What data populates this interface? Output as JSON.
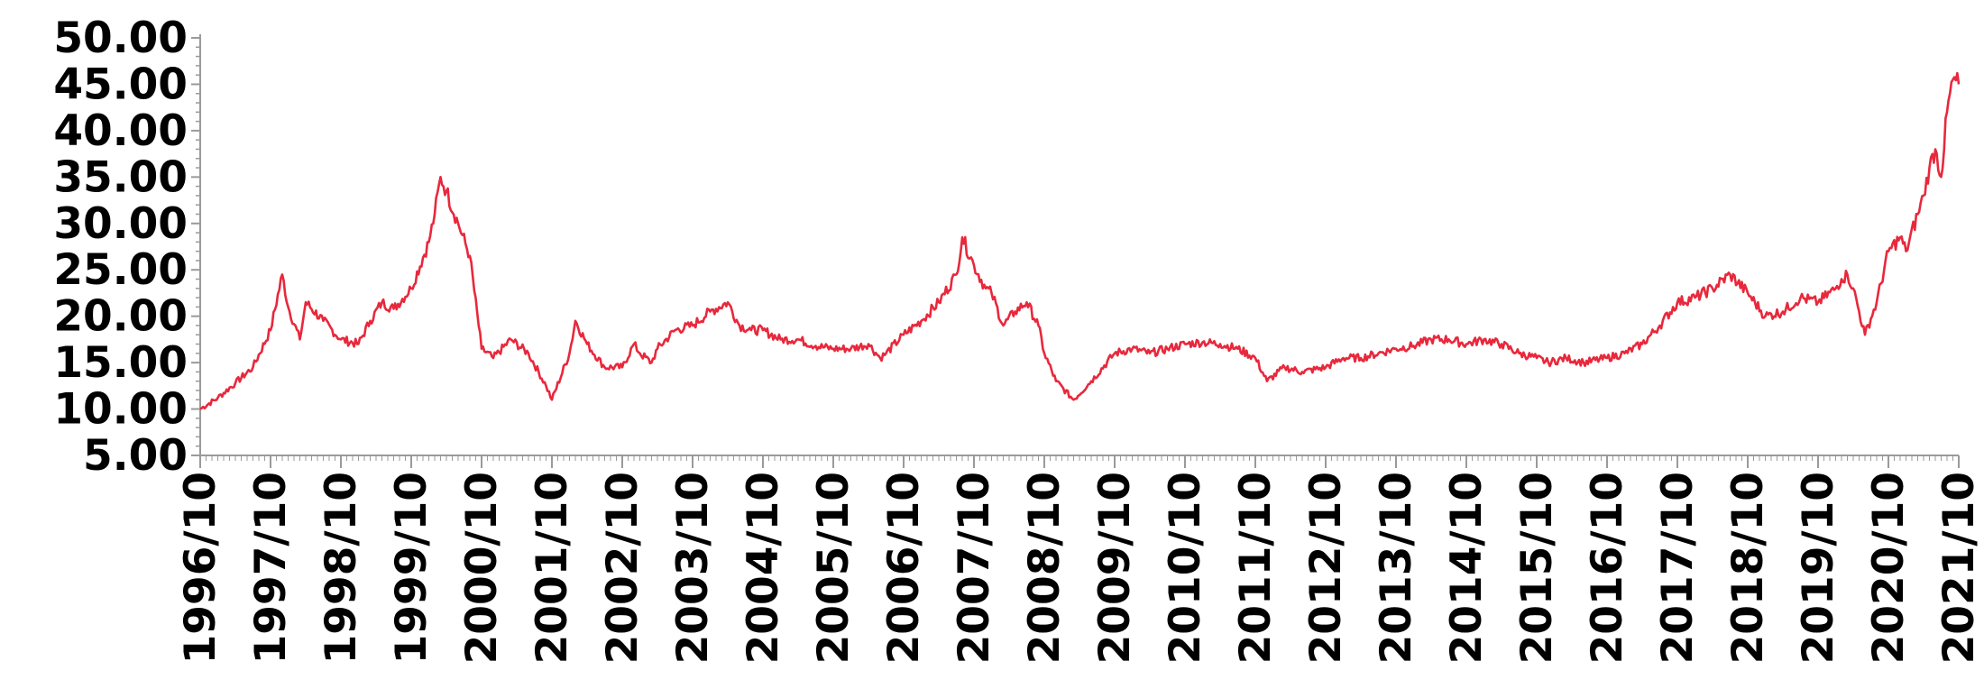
{
  "chart_data": {
    "type": "line",
    "title": "",
    "xlabel": "",
    "ylabel": "",
    "ylim": [
      5,
      50
    ],
    "xlim": [
      "1996/10",
      "2021/10"
    ],
    "grid": false,
    "colors": {
      "line": "#e8283c",
      "axis": "#9a9a9a",
      "text": "#000000"
    },
    "y_ticks": [
      "5.00",
      "10.00",
      "15.00",
      "20.00",
      "25.00",
      "30.00",
      "35.00",
      "40.00",
      "45.00",
      "50.00"
    ],
    "x_ticks": [
      "1996/10",
      "1997/10",
      "1998/10",
      "1999/10",
      "2000/10",
      "2001/10",
      "2002/10",
      "2003/10",
      "2004/10",
      "2005/10",
      "2006/10",
      "2007/10",
      "2008/10",
      "2009/10",
      "2010/10",
      "2011/10",
      "2012/10",
      "2013/10",
      "2014/10",
      "2015/10",
      "2016/10",
      "2017/10",
      "2018/10",
      "2019/10",
      "2020/10",
      "2021/10"
    ],
    "series": [
      {
        "x": [
          "1996/10",
          "1997/01",
          "1997/04",
          "1997/07",
          "1997/10",
          "1997/12",
          "1998/01",
          "1998/03",
          "1998/04",
          "1998/07",
          "1998/10",
          "1999/01",
          "1999/03",
          "1999/05",
          "1999/07",
          "1999/10",
          "2000/01",
          "2000/02",
          "2000/03",
          "2000/04",
          "2000/06",
          "2000/08",
          "2000/10",
          "2000/12",
          "2001/03",
          "2001/06",
          "2001/09",
          "2001/10",
          "2002/01",
          "2002/02",
          "2002/04",
          "2002/07",
          "2002/10",
          "2002/12",
          "2003/01",
          "2003/03",
          "2003/04",
          "2003/07",
          "2003/10",
          "2004/01",
          "2004/04",
          "2004/06",
          "2004/08",
          "2004/10",
          "2005/01",
          "2005/04",
          "2005/07",
          "2005/10",
          "2006/01",
          "2006/04",
          "2006/06",
          "2006/07",
          "2006/10",
          "2007/01",
          "2007/04",
          "2007/07",
          "2007/08",
          "2007/10",
          "2007/12",
          "2008/01",
          "2008/03",
          "2008/05",
          "2008/07",
          "2008/09",
          "2008/10",
          "2008/12",
          "2009/03",
          "2009/06",
          "2009/10",
          "2010/01",
          "2010/04",
          "2010/07",
          "2010/10",
          "2011/01",
          "2011/04",
          "2011/07",
          "2011/10",
          "2011/12",
          "2012/03",
          "2012/06",
          "2012/10",
          "2013/01",
          "2013/04",
          "2013/07",
          "2013/10",
          "2014/01",
          "2014/04",
          "2014/07",
          "2014/10",
          "2015/01",
          "2015/04",
          "2015/07",
          "2015/10",
          "2015/12",
          "2016/03",
          "2016/06",
          "2016/10",
          "2017/01",
          "2017/04",
          "2017/07",
          "2017/10",
          "2018/01",
          "2018/04",
          "2018/07",
          "2018/10",
          "2019/01",
          "2019/04",
          "2019/07",
          "2019/10",
          "2020/01",
          "2020/02",
          "2020/03",
          "2020/04",
          "2020/06",
          "2020/08",
          "2020/10",
          "2020/12",
          "2021/01",
          "2021/03",
          "2021/04",
          "2021/05",
          "2021/06",
          "2021/07",
          "2021/08",
          "2021/09",
          "2021/10"
        ],
        "y": [
          10.0,
          11.2,
          12.8,
          14.5,
          18.5,
          24.5,
          21.0,
          17.5,
          21.5,
          19.5,
          17.5,
          17.0,
          19.5,
          21.5,
          20.8,
          23.0,
          28.0,
          31.0,
          35.0,
          33.5,
          30.0,
          26.5,
          16.5,
          15.5,
          17.5,
          16.0,
          12.5,
          11.0,
          16.0,
          19.5,
          17.0,
          14.5,
          14.5,
          17.0,
          16.0,
          15.0,
          16.5,
          18.5,
          19.0,
          20.5,
          21.5,
          19.0,
          18.5,
          18.5,
          17.5,
          17.5,
          16.8,
          16.5,
          16.5,
          17.0,
          15.5,
          16.0,
          18.0,
          19.5,
          21.5,
          24.5,
          28.5,
          25.5,
          23.0,
          22.5,
          19.0,
          20.5,
          21.5,
          19.0,
          16.0,
          13.0,
          11.0,
          13.0,
          16.0,
          16.5,
          16.0,
          16.5,
          17.0,
          17.2,
          17.0,
          16.5,
          15.5,
          13.0,
          14.5,
          14.0,
          14.5,
          15.5,
          15.5,
          16.0,
          16.5,
          16.8,
          17.5,
          17.5,
          17.0,
          17.5,
          17.0,
          16.0,
          15.5,
          15.0,
          15.5,
          15.0,
          15.5,
          16.0,
          17.0,
          19.0,
          21.5,
          22.0,
          23.0,
          24.5,
          22.5,
          20.0,
          20.5,
          22.0,
          21.5,
          23.0,
          24.0,
          24.5,
          23.0,
          18.0,
          21.5,
          27.0,
          28.5,
          27.0,
          31.0,
          33.0,
          36.0,
          38.0,
          35.0,
          42.0,
          45.5,
          45.0
        ]
      }
    ]
  }
}
